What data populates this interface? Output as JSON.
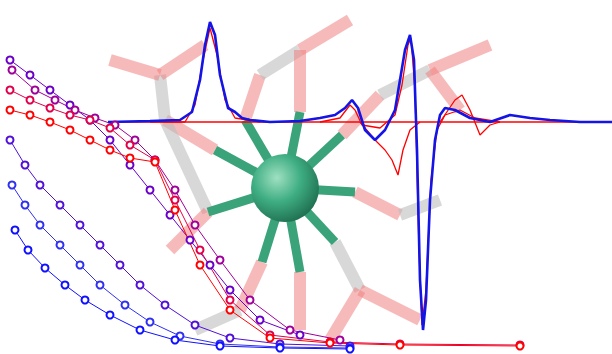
{
  "chart_data": {
    "type": "line",
    "xlim": [
      0,
      612
    ],
    "ylim": [
      0,
      354
    ],
    "xticks": [
      0,
      612
    ],
    "yticks": [
      0,
      354
    ],
    "tick_labels": false,
    "grid": false,
    "series": [
      {
        "color": "#6a00c8",
        "marker": "circle",
        "line_style": "solid",
        "x": [
          10,
          30,
          50,
          70,
          90,
          110,
          130,
          150,
          170,
          190,
          210,
          230,
          260,
          300
        ],
        "values": [
          294,
          279,
          264,
          249,
          234,
          214,
          189,
          164,
          139,
          114,
          89,
          64,
          34,
          19
        ]
      },
      {
        "color": "#a0009a",
        "marker": "circle",
        "line_style": "solid",
        "x": [
          12,
          35,
          55,
          75,
          95,
          115,
          135,
          155,
          175,
          195,
          220,
          250,
          290,
          340
        ],
        "values": [
          284,
          264,
          254,
          244,
          236,
          229,
          214,
          194,
          164,
          129,
          94,
          54,
          24,
          14
        ]
      },
      {
        "color": "#e0004a",
        "marker": "circle",
        "line_style": "solid",
        "x": [
          10,
          30,
          50,
          70,
          90,
          110,
          130,
          155,
          175,
          200,
          230,
          270,
          330,
          400,
          520
        ],
        "values": [
          264,
          254,
          246,
          239,
          234,
          226,
          209,
          194,
          154,
          104,
          54,
          19,
          12,
          10,
          9
        ]
      },
      {
        "color": "#ff0000",
        "marker": "circle",
        "line_style": "solid",
        "x": [
          10,
          30,
          50,
          70,
          90,
          110,
          130,
          155,
          175,
          200,
          230,
          270,
          330,
          400,
          520
        ],
        "values": [
          244,
          239,
          232,
          224,
          214,
          204,
          196,
          192,
          144,
          89,
          44,
          16,
          11,
          9,
          8
        ]
      },
      {
        "color": "#5010d8",
        "marker": "circle",
        "line_style": "solid",
        "x": [
          10,
          25,
          40,
          60,
          80,
          100,
          120,
          140,
          165,
          195,
          230,
          280,
          350
        ],
        "values": [
          214,
          189,
          169,
          149,
          129,
          109,
          89,
          69,
          49,
          29,
          16,
          10,
          8
        ]
      },
      {
        "color": "#3030f0",
        "marker": "circle",
        "line_style": "solid",
        "x": [
          12,
          25,
          40,
          60,
          80,
          100,
          125,
          150,
          180,
          220,
          280,
          350
        ],
        "values": [
          169,
          149,
          129,
          109,
          89,
          69,
          49,
          32,
          18,
          10,
          7,
          6
        ]
      },
      {
        "color": "#1010ff",
        "marker": "circle",
        "line_style": "solid",
        "x": [
          15,
          28,
          45,
          65,
          85,
          110,
          140,
          175,
          220,
          280,
          350
        ],
        "values": [
          124,
          104,
          86,
          69,
          54,
          39,
          24,
          14,
          8,
          6,
          5
        ]
      },
      {
        "color": "#ff0000",
        "marker": "none",
        "line_style": "solid",
        "x": [
          108,
          612
        ],
        "values": [
          232,
          232
        ]
      },
      {
        "color": "#ff0000",
        "marker": "none",
        "line_style": "solid",
        "x": [
          150,
          185,
          195,
          203,
          210,
          217,
          225,
          235,
          260
        ],
        "values": [
          232,
          232,
          249,
          294,
          326,
          299,
          254,
          236,
          232
        ]
      },
      {
        "color": "#ff0000",
        "marker": "none",
        "line_style": "solid",
        "x": [
          320,
          340,
          350,
          355,
          362,
          380,
          395,
          402,
          408,
          411,
          415,
          419,
          422,
          426,
          431,
          437,
          445,
          460,
          475,
          500
        ],
        "values": [
          232,
          236,
          249,
          244,
          229,
          226,
          239,
          269,
          309,
          316,
          264,
          104,
          29,
          64,
          174,
          224,
          239,
          244,
          236,
          232
        ]
      },
      {
        "color": "#ff0000",
        "marker": "none",
        "line_style": "solid",
        "x": [
          360,
          375,
          385,
          392,
          398,
          403,
          410,
          420
        ],
        "values": [
          232,
          214,
          204,
          194,
          179,
          204,
          224,
          232
        ]
      },
      {
        "color": "#ff0000",
        "marker": "none",
        "line_style": "solid",
        "x": [
          440,
          455,
          462,
          470,
          480,
          490,
          500
        ],
        "values": [
          232,
          254,
          259,
          244,
          219,
          229,
          232
        ]
      },
      {
        "color": "#1414e6",
        "marker": "none",
        "line_style": "solid",
        "x": [
          108,
          150,
          180,
          192,
          200,
          205,
          210,
          215,
          220,
          228,
          235,
          242,
          250,
          270,
          300,
          320,
          335,
          345,
          352,
          358,
          365,
          375,
          385,
          395,
          400,
          405,
          410,
          414,
          417,
          420,
          423,
          426,
          430,
          435,
          440,
          445,
          455,
          470,
          490,
          510,
          530,
          550,
          580,
          612
        ],
        "values": [
          232,
          233,
          234,
          242,
          274,
          309,
          332,
          319,
          279,
          246,
          242,
          236,
          234,
          232,
          233,
          236,
          239,
          246,
          254,
          246,
          224,
          214,
          224,
          244,
          274,
          304,
          319,
          294,
          204,
          74,
          24,
          54,
          154,
          214,
          239,
          246,
          244,
          236,
          232,
          239,
          236,
          234,
          232,
          232
        ]
      }
    ]
  }
}
